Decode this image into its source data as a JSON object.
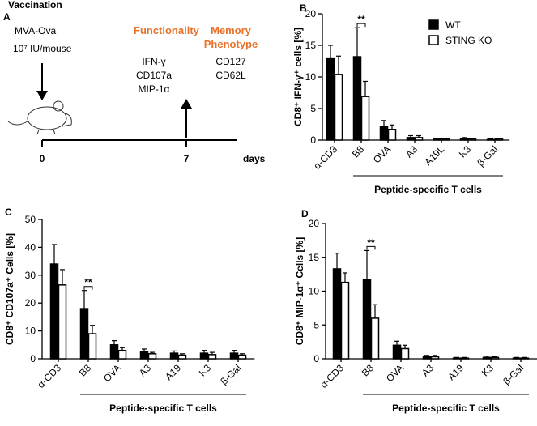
{
  "panel_a": {
    "label": "A",
    "heading": "Vaccination",
    "vaccine": [
      "MVA-Ova",
      "10⁷ IU/mouse"
    ],
    "functionality": {
      "title": "Functionality",
      "markers": [
        "IFN-γ",
        "CD107a",
        "MIP-1α"
      ]
    },
    "memory": {
      "title": [
        "Memory",
        "Phenotype"
      ],
      "markers": [
        "CD127",
        "CD62L"
      ]
    },
    "timeline": {
      "ticks": [
        "0",
        "7"
      ],
      "unit": "days"
    }
  },
  "chart_data": [
    {
      "type": "bar",
      "panel": "B",
      "y_label": "CD8⁺ IFN-γ⁺ cells [%]",
      "categories": [
        "α-CD3",
        "B8",
        "OVA",
        "A3",
        "A19L",
        "K3",
        "β-Gal"
      ],
      "group_label": "Peptide-specific T cells",
      "annotation": "**",
      "legend": "top-right",
      "ylim": [
        0,
        20
      ],
      "yticks": [
        0,
        5,
        10,
        15,
        20
      ],
      "series": [
        {
          "name": "WT",
          "color": "#000000",
          "values": [
            13,
            13.2,
            2.1,
            0.4,
            0.2,
            0.2,
            0.1
          ],
          "errors": [
            2,
            4.6,
            1,
            0.3,
            0.1,
            0.2,
            0.1
          ]
        },
        {
          "name": "STING KO",
          "color": "#ffffff",
          "values": [
            10.4,
            6.9,
            1.7,
            0.4,
            0.2,
            0.2,
            0.2
          ],
          "errors": [
            2.9,
            2.4,
            0.7,
            0.3,
            0.1,
            0.1,
            0.1
          ]
        }
      ]
    },
    {
      "type": "bar",
      "panel": "C",
      "y_label": "CD8⁺ CD107a⁺ Cells [%]",
      "categories": [
        "α-CD3",
        "B8",
        "OVA",
        "A3",
        "A19",
        "K3",
        "β-Gal"
      ],
      "group_label": "Peptide-specific T cells",
      "annotation": "**",
      "ylim": [
        0,
        50
      ],
      "yticks": [
        0,
        10,
        20,
        30,
        40,
        50
      ],
      "series": [
        {
          "color": "#000000",
          "values": [
            34,
            18,
            5,
            2.5,
            2,
            2,
            2
          ],
          "errors": [
            7,
            6.5,
            1.5,
            1,
            0.8,
            1,
            1
          ]
        },
        {
          "color": "#ffffff",
          "values": [
            26.5,
            9,
            3,
            1.8,
            1.3,
            1.5,
            1.3
          ],
          "errors": [
            5.5,
            3,
            1,
            0.5,
            0.5,
            0.8,
            0.5
          ]
        }
      ]
    },
    {
      "type": "bar",
      "panel": "D",
      "y_label": "CD8⁺ MIP-1α⁺ Cells [%]",
      "categories": [
        "α-CD3",
        "B8",
        "OVA",
        "A3",
        "A19",
        "K3",
        "β-Gal"
      ],
      "group_label": "Peptide-specific T cells",
      "annotation": "**",
      "ylim": [
        0,
        20
      ],
      "yticks": [
        0,
        5,
        10,
        15,
        20
      ],
      "series": [
        {
          "color": "#000000",
          "values": [
            13.3,
            11.7,
            2,
            0.3,
            0.1,
            0.2,
            0.1
          ],
          "errors": [
            2.3,
            4.3,
            0.6,
            0.2,
            0.1,
            0.2,
            0.1
          ]
        },
        {
          "color": "#ffffff",
          "values": [
            11.3,
            6,
            1.5,
            0.3,
            0.1,
            0.2,
            0.1
          ],
          "errors": [
            1.4,
            2,
            0.5,
            0.2,
            0.1,
            0.1,
            0.1
          ]
        }
      ]
    }
  ]
}
